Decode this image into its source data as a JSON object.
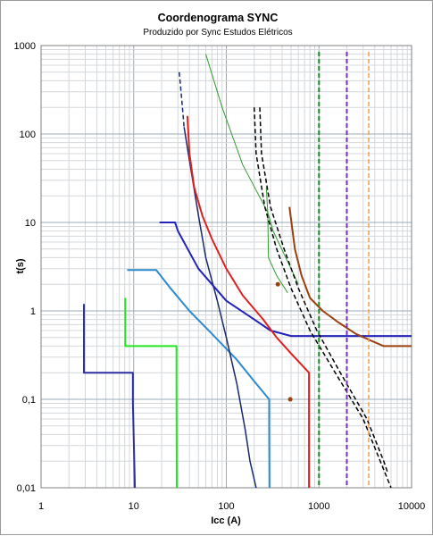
{
  "chart_data": {
    "type": "line",
    "title": "Coordenograma SYNC",
    "subtitle": "Produzido por Sync Estudos Elétricos",
    "xlabel": "Icc (A)",
    "ylabel": "t(s)",
    "x_scale": "log",
    "y_scale": "log",
    "xlim": [
      1,
      10000
    ],
    "ylim": [
      0.01,
      1000
    ],
    "x_ticks": [
      {
        "value": 1,
        "label": "1"
      },
      {
        "value": 10,
        "label": "10"
      },
      {
        "value": 100,
        "label": "100"
      },
      {
        "value": 1000,
        "label": "1000"
      },
      {
        "value": 10000,
        "label": "10000"
      }
    ],
    "y_ticks": [
      {
        "value": 0.01,
        "label": "0,01"
      },
      {
        "value": 0.1,
        "label": "0,1"
      },
      {
        "value": 1,
        "label": "1"
      },
      {
        "value": 10,
        "label": "10"
      },
      {
        "value": 100,
        "label": "100"
      },
      {
        "value": 1000,
        "label": "1000"
      }
    ],
    "grid": true,
    "legend": "none",
    "series": [
      {
        "color": "#2e2e9e",
        "dash": "solid",
        "width": 2,
        "points": [
          [
            2.9,
            1.2
          ],
          [
            2.9,
            0.2
          ],
          [
            9.8,
            0.2
          ],
          [
            9.8,
            0.095
          ],
          [
            10.3,
            0.01
          ]
        ]
      },
      {
        "color": "#22e622",
        "dash": "solid",
        "width": 2,
        "points": [
          [
            8.1,
            1.4
          ],
          [
            8.1,
            0.4
          ],
          [
            29,
            0.4
          ],
          [
            29,
            0.15
          ],
          [
            29.2,
            0.01
          ]
        ]
      },
      {
        "color": "#2e8ad0",
        "dash": "solid",
        "width": 2,
        "points": [
          [
            8.5,
            2.9
          ],
          [
            17.5,
            2.9
          ],
          [
            25,
            1.8
          ],
          [
            40,
            1.0
          ],
          [
            70,
            0.55
          ],
          [
            130,
            0.28
          ],
          [
            200,
            0.16
          ],
          [
            290,
            0.1
          ],
          [
            290,
            0.05
          ],
          [
            292,
            0.01
          ]
        ]
      },
      {
        "color": "#17296e",
        "dash": "solid",
        "width": 1.5,
        "points": [
          [
            35,
            120
          ],
          [
            40,
            50
          ],
          [
            50,
            12
          ],
          [
            60,
            4
          ],
          [
            80,
            1.3
          ],
          [
            100,
            0.5
          ],
          [
            130,
            0.15
          ],
          [
            160,
            0.045
          ],
          [
            180,
            0.02
          ],
          [
            210,
            0.01
          ]
        ]
      },
      {
        "color": "#17296e",
        "dash": "dashed",
        "width": 1.5,
        "points": [
          [
            31,
            500
          ],
          [
            32,
            350
          ],
          [
            33,
            250
          ],
          [
            35,
            120
          ]
        ]
      },
      {
        "color": "#2222bb",
        "dash": "solid",
        "width": 2,
        "points": [
          [
            19,
            10
          ],
          [
            28,
            10
          ],
          [
            30,
            8
          ],
          [
            50,
            3
          ],
          [
            70,
            2
          ],
          [
            100,
            1.3
          ],
          [
            200,
            0.8
          ],
          [
            300,
            0.6
          ],
          [
            500,
            0.52
          ],
          [
            1000,
            0.52
          ],
          [
            10000,
            0.52
          ]
        ]
      },
      {
        "color": "#e02020",
        "dash": "solid",
        "width": 2,
        "points": [
          [
            38,
            160
          ],
          [
            40,
            60
          ],
          [
            45,
            25
          ],
          [
            55,
            12
          ],
          [
            70,
            6.5
          ],
          [
            100,
            3
          ],
          [
            150,
            1.5
          ],
          [
            250,
            0.8
          ],
          [
            350,
            0.5
          ],
          [
            500,
            0.33
          ],
          [
            780,
            0.2
          ],
          [
            780,
            0.01
          ]
        ]
      },
      {
        "color": "#2e9a2e",
        "dash": "solid",
        "width": 1,
        "points": [
          [
            60,
            800
          ],
          [
            90,
            200
          ],
          [
            150,
            45
          ],
          [
            280,
            13
          ],
          [
            320,
            8
          ],
          [
            500,
            3
          ],
          [
            600,
            2
          ]
        ]
      },
      {
        "color": "#2e9a2e",
        "dash": "solid",
        "width": 1,
        "points": [
          [
            270,
            25
          ],
          [
            280,
            13
          ],
          [
            285,
            4
          ],
          [
            350,
            2.5
          ],
          [
            460,
            1.6
          ]
        ]
      },
      {
        "color": "#9a4010",
        "dash": "solid",
        "width": 2,
        "points": [
          [
            480,
            15
          ],
          [
            550,
            5
          ],
          [
            650,
            2.5
          ],
          [
            800,
            1.4
          ],
          [
            1100,
            1.0
          ],
          [
            1600,
            0.75
          ],
          [
            2500,
            0.55
          ],
          [
            3500,
            0.47
          ],
          [
            5000,
            0.4
          ],
          [
            10000,
            0.4
          ]
        ]
      },
      {
        "color": "#000000",
        "dash": "dashed",
        "width": 1.5,
        "points": [
          [
            200,
            200
          ],
          [
            210,
            60
          ],
          [
            260,
            15
          ],
          [
            350,
            5
          ],
          [
            500,
            1.8
          ],
          [
            800,
            0.6
          ],
          [
            1500,
            0.2
          ],
          [
            3000,
            0.06
          ],
          [
            6000,
            0.01
          ]
        ]
      },
      {
        "color": "#000000",
        "dash": "dashed",
        "width": 1.5,
        "points": [
          [
            230,
            200
          ],
          [
            240,
            60
          ],
          [
            300,
            15
          ],
          [
            420,
            5
          ],
          [
            600,
            1.8
          ],
          [
            950,
            0.6
          ],
          [
            1700,
            0.2
          ],
          [
            3300,
            0.06
          ],
          [
            5000,
            0.02
          ],
          [
            5500,
            0.015
          ]
        ]
      },
      {
        "color": "#1a8a1a",
        "dash": "dashed",
        "width": 2,
        "points": [
          [
            1000,
            850
          ],
          [
            1000,
            0.01
          ]
        ]
      },
      {
        "color": "#7a30b0",
        "dash": "dashed",
        "width": 2,
        "points": [
          [
            2000,
            850
          ],
          [
            2000,
            0.01
          ]
        ]
      },
      {
        "color": "#f0a050",
        "dash": "dashed",
        "width": 1.5,
        "points": [
          [
            3450,
            850
          ],
          [
            3450,
            0.01
          ]
        ]
      }
    ],
    "markers": [
      {
        "x": 490,
        "y": 0.1,
        "color": "#9a4010"
      },
      {
        "x": 360,
        "y": 2.0,
        "color": "#9a4010"
      }
    ]
  }
}
